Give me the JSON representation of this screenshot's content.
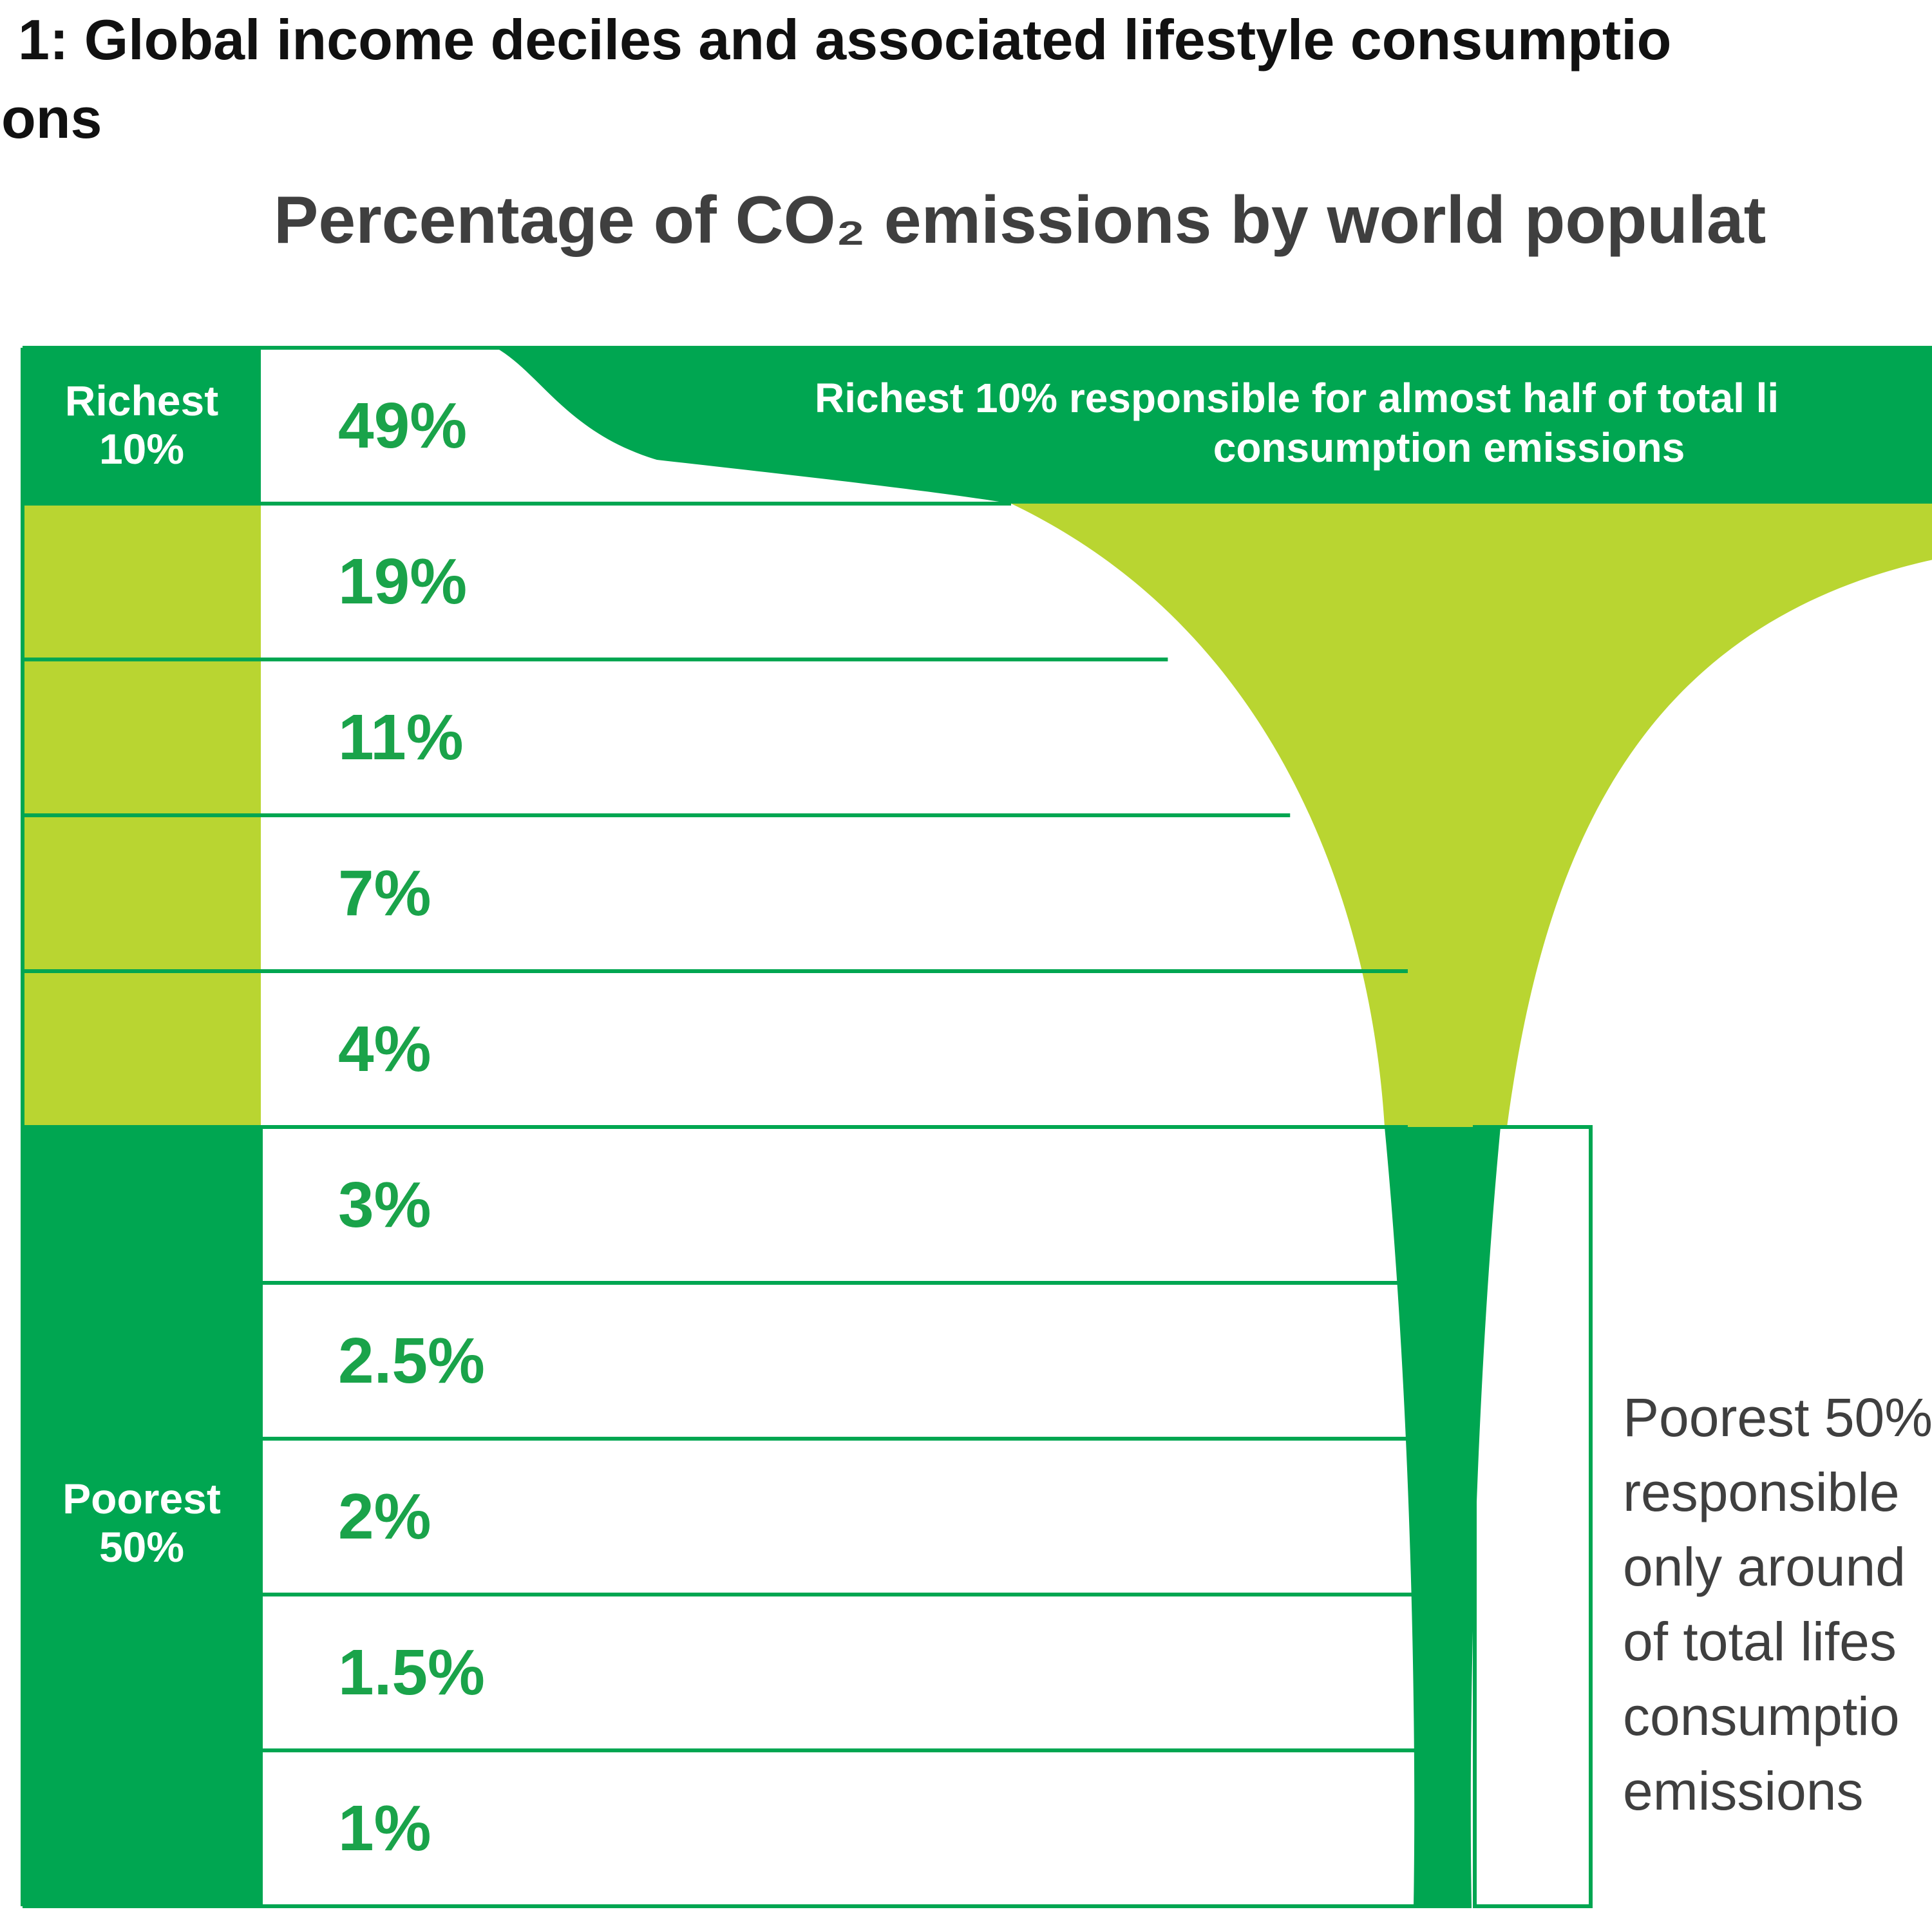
{
  "figure": {
    "heading_line1": "1: Global income deciles and associated lifestyle consumptio",
    "heading_line2": "ons"
  },
  "chart_data": {
    "type": "bar",
    "title": "Percentage of CO₂ emissions by world populat",
    "categories": [
      "Richest 10%",
      "",
      "",
      "",
      "",
      "",
      "",
      "",
      "",
      ""
    ],
    "values": [
      49,
      19,
      11,
      7,
      4,
      3,
      2.5,
      2,
      1.5,
      1
    ],
    "value_labels": [
      "49%",
      "19%",
      "11%",
      "7%",
      "4%",
      "3%",
      "2.5%",
      "2%",
      "1.5%",
      "1%"
    ],
    "group_labels": {
      "richest": [
        "Richest",
        "10%"
      ],
      "poorest": [
        "Poorest",
        "50%"
      ]
    },
    "annotations": {
      "richest": [
        "Richest 10% responsible for almost half of total li",
        "consumption emissions"
      ],
      "poorest": [
        "Poorest 50%",
        "responsible",
        "only around",
        "of total lifes",
        "consumptio",
        "emissions"
      ]
    },
    "colors": {
      "dark_green": "#00a651",
      "light_green": "#b9d531",
      "label_green": "#1aa34a",
      "annotation_gray": "#3f3f3f"
    }
  }
}
